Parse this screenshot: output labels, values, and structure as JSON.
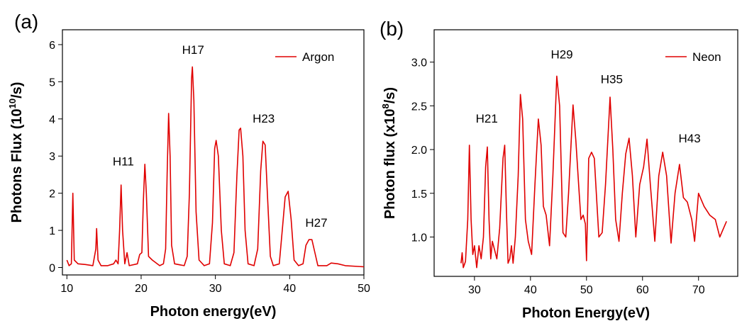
{
  "chart_data": [
    {
      "type": "line",
      "panel_label": "(a)",
      "xlabel": "Photon energy(eV)",
      "ylabel": {
        "main": "Photons Flux (10",
        "superscript": "10",
        "end": "/s)"
      },
      "xlim": [
        9.4,
        50
      ],
      "ylim": [
        -0.2,
        6.4
      ],
      "xticks": [
        10,
        20,
        30,
        40,
        50
      ],
      "yticks": [
        0,
        1,
        2,
        3,
        4,
        5,
        6
      ],
      "legend": "upper right",
      "annotations": [
        "H11",
        "H17",
        "H23",
        "H27"
      ],
      "x": [
        10.0,
        10.3,
        10.6,
        10.8,
        11.0,
        11.5,
        12.5,
        13.5,
        13.9,
        14.0,
        14.2,
        14.6,
        15.5,
        16.3,
        16.6,
        16.9,
        17.1,
        17.3,
        17.5,
        17.8,
        18.1,
        18.4,
        19.5,
        19.8,
        20.1,
        20.3,
        20.5,
        20.7,
        21.0,
        21.5,
        22.5,
        23.0,
        23.3,
        23.5,
        23.7,
        23.9,
        24.1,
        24.5,
        25.8,
        26.2,
        26.5,
        26.8,
        26.9,
        27.1,
        27.4,
        27.8,
        28.5,
        29.2,
        29.6,
        29.9,
        30.1,
        30.4,
        30.8,
        31.2,
        32.0,
        32.5,
        32.9,
        33.2,
        33.4,
        33.7,
        34.0,
        34.4,
        35.2,
        35.7,
        36.1,
        36.4,
        36.7,
        37.0,
        37.4,
        37.8,
        38.6,
        39.0,
        39.4,
        39.8,
        40.2,
        40.6,
        41.2,
        41.8,
        42.2,
        42.6,
        43.0,
        43.4,
        43.8,
        45.0,
        45.6,
        46.5,
        47.5,
        50.0
      ],
      "series": [
        {
          "name": "Argon",
          "color": "#e00000",
          "values": [
            0.2,
            0.05,
            0.1,
            2.0,
            0.2,
            0.1,
            0.08,
            0.05,
            0.5,
            1.05,
            0.2,
            0.05,
            0.05,
            0.1,
            0.2,
            0.1,
            1.0,
            2.22,
            1.0,
            0.1,
            0.4,
            0.05,
            0.1,
            0.35,
            0.4,
            1.8,
            2.78,
            2.0,
            0.3,
            0.2,
            0.05,
            0.1,
            0.5,
            2.5,
            4.15,
            3.0,
            0.6,
            0.1,
            0.05,
            0.3,
            2.0,
            5.1,
            5.4,
            4.5,
            1.5,
            0.2,
            0.05,
            0.1,
            1.2,
            3.2,
            3.42,
            3.0,
            1.0,
            0.1,
            0.05,
            0.4,
            2.5,
            3.7,
            3.75,
            3.0,
            1.0,
            0.1,
            0.05,
            0.5,
            2.6,
            3.4,
            3.3,
            2.0,
            0.3,
            0.05,
            0.1,
            1.0,
            1.9,
            2.05,
            1.3,
            0.2,
            0.05,
            0.1,
            0.6,
            0.75,
            0.75,
            0.4,
            0.05,
            0.05,
            0.12,
            0.1,
            0.05,
            0.02
          ]
        }
      ]
    },
    {
      "type": "line",
      "panel_label": "(b)",
      "xlabel": "Photon Energy(eV)",
      "ylabel": {
        "main": "Photon flux (x10",
        "superscript": "8",
        "end": "/s)"
      },
      "xlim": [
        22.8,
        77
      ],
      "ylim": [
        0.55,
        3.37
      ],
      "xticks": [
        30,
        40,
        50,
        60,
        70
      ],
      "yticks": [
        {
          "value": 1,
          "label": "1.0"
        },
        1.5,
        {
          "value": 2,
          "label": "2.0"
        },
        2.5,
        {
          "value": 3,
          "label": "3.0"
        }
      ],
      "legend": "upper right",
      "annotations": [
        "H21",
        "H29",
        "H35",
        "H43"
      ],
      "x": [
        27.6,
        27.8,
        28.0,
        28.4,
        28.8,
        29.1,
        29.4,
        29.7,
        30.0,
        30.4,
        30.8,
        31.2,
        31.6,
        32.0,
        32.3,
        32.6,
        32.9,
        33.2,
        33.6,
        34.0,
        34.5,
        35.1,
        35.4,
        35.7,
        36.0,
        36.3,
        36.6,
        36.9,
        37.3,
        37.8,
        38.2,
        38.6,
        39.1,
        39.6,
        40.2,
        40.8,
        41.4,
        41.9,
        42.3,
        42.8,
        43.4,
        44.0,
        44.7,
        45.2,
        45.8,
        46.3,
        46.8,
        47.6,
        48.1,
        48.6,
        49.0,
        49.4,
        49.8,
        50.0,
        50.4,
        50.9,
        51.4,
        52.2,
        52.8,
        53.4,
        54.2,
        54.7,
        55.2,
        55.8,
        56.4,
        57.0,
        57.6,
        58.2,
        58.8,
        59.5,
        60.2,
        60.8,
        61.4,
        62.2,
        62.9,
        63.6,
        64.3,
        65.1,
        65.8,
        66.6,
        67.3,
        68.0,
        68.8,
        69.3,
        70.0,
        71.0,
        72.0,
        73.0,
        73.8,
        75.0
      ],
      "series": [
        {
          "name": "Neon",
          "color": "#e00000",
          "values": [
            0.7,
            0.82,
            0.65,
            0.72,
            1.2,
            2.05,
            1.2,
            0.8,
            0.9,
            0.65,
            0.9,
            0.75,
            1.0,
            1.8,
            2.03,
            1.2,
            0.75,
            0.95,
            0.85,
            0.75,
            1.1,
            1.9,
            2.05,
            1.3,
            0.7,
            0.75,
            0.9,
            0.7,
            1.0,
            1.7,
            2.63,
            2.35,
            1.2,
            0.95,
            0.8,
            1.6,
            2.35,
            2.05,
            1.35,
            1.25,
            0.9,
            1.7,
            2.84,
            2.5,
            1.05,
            1.0,
            1.5,
            2.51,
            2.1,
            1.6,
            1.2,
            1.25,
            1.15,
            0.73,
            1.9,
            1.97,
            1.9,
            1.0,
            1.05,
            1.6,
            2.6,
            2.0,
            1.2,
            0.95,
            1.5,
            1.95,
            2.13,
            1.7,
            1.0,
            1.6,
            1.8,
            2.12,
            1.6,
            0.95,
            1.7,
            1.97,
            1.7,
            0.93,
            1.5,
            1.83,
            1.45,
            1.4,
            1.2,
            0.95,
            1.5,
            1.35,
            1.25,
            1.2,
            1.0,
            1.18
          ]
        }
      ]
    }
  ]
}
